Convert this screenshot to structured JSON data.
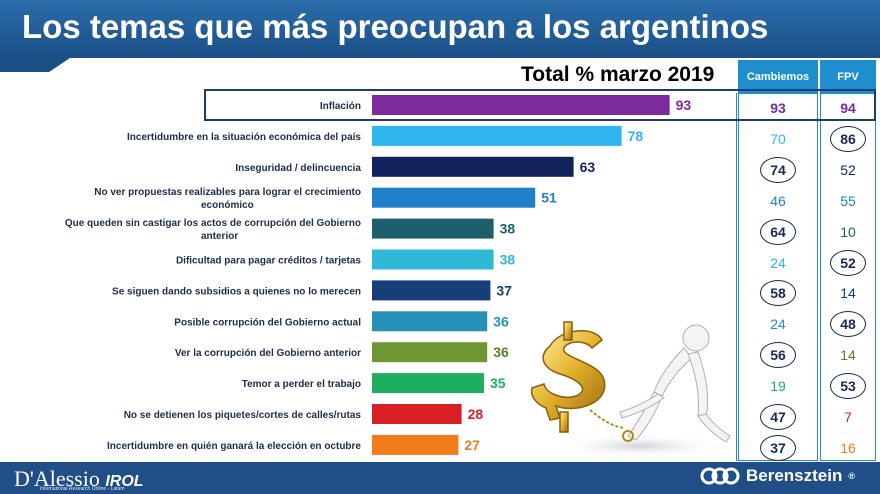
{
  "header": {
    "title": "Los temas que más preocupan a los argentinos"
  },
  "columns": {
    "cambiemos": "Cambiemos",
    "fpv": "FPV"
  },
  "chart_data": {
    "type": "bar",
    "orientation": "horizontal",
    "title": "Total % marzo 2019",
    "xlim": [
      0,
      100
    ],
    "grid": false,
    "categories": [
      "Inflación",
      "Incertidumbre en la situación económica del país",
      "Inseguridad / delincuencia",
      [
        "No ver propuestas realizables para lograr el crecimiento",
        "económico"
      ],
      [
        "Que queden sin castigar los actos de corrupción del Gobierno",
        "anterior"
      ],
      "Dificultad para pagar créditos / tarjetas",
      "Se siguen dando subsidios a quienes no lo merecen",
      "Posible corrupción del Gobierno actual",
      "Ver la corrupción del Gobierno anterior",
      "Temor a perder el trabajo",
      "No se detienen los piquetes/cortes de calles/rutas",
      "Incertidumbre en quién ganará la elección en octubre"
    ],
    "values": [
      93,
      78,
      63,
      51,
      38,
      38,
      37,
      36,
      36,
      35,
      28,
      27
    ],
    "colors": [
      "#7d2a9c",
      "#2fb6ee",
      "#13235e",
      "#1f7fc9",
      "#1e5f6b",
      "#2fb9d6",
      "#163e78",
      "#2690b6",
      "#6f9633",
      "#1fae5f",
      "#d81f26",
      "#f07c1c"
    ],
    "label_colors": [
      "#7d2a9c",
      "#2fb6ee",
      "#13235e",
      "#1f7fc9",
      "#1e5f6b",
      "#2fb9d6",
      "#163e78",
      "#2690b6",
      "#5a7f2a",
      "#1fae5f",
      "#d81f26",
      "#f07c1c"
    ],
    "side_table": {
      "cambiemos": [
        93,
        70,
        74,
        46,
        64,
        24,
        58,
        24,
        56,
        19,
        47,
        37
      ],
      "fpv": [
        94,
        86,
        52,
        55,
        10,
        52,
        14,
        48,
        14,
        53,
        7,
        16
      ],
      "cambiemos_circled": [
        false,
        false,
        true,
        false,
        true,
        false,
        true,
        false,
        true,
        false,
        true,
        true
      ],
      "fpv_circled": [
        false,
        true,
        false,
        false,
        false,
        true,
        false,
        true,
        false,
        true,
        false,
        false
      ]
    }
  },
  "footer": {
    "left_brand": "D'Alessio",
    "left_brand_suffix": "IROL",
    "left_tagline": "International Research Online - Latam",
    "right_brand": "Berensztein",
    "right_mark": "®"
  },
  "illustration": {
    "name": "figure-dragging-dollar-icon"
  }
}
